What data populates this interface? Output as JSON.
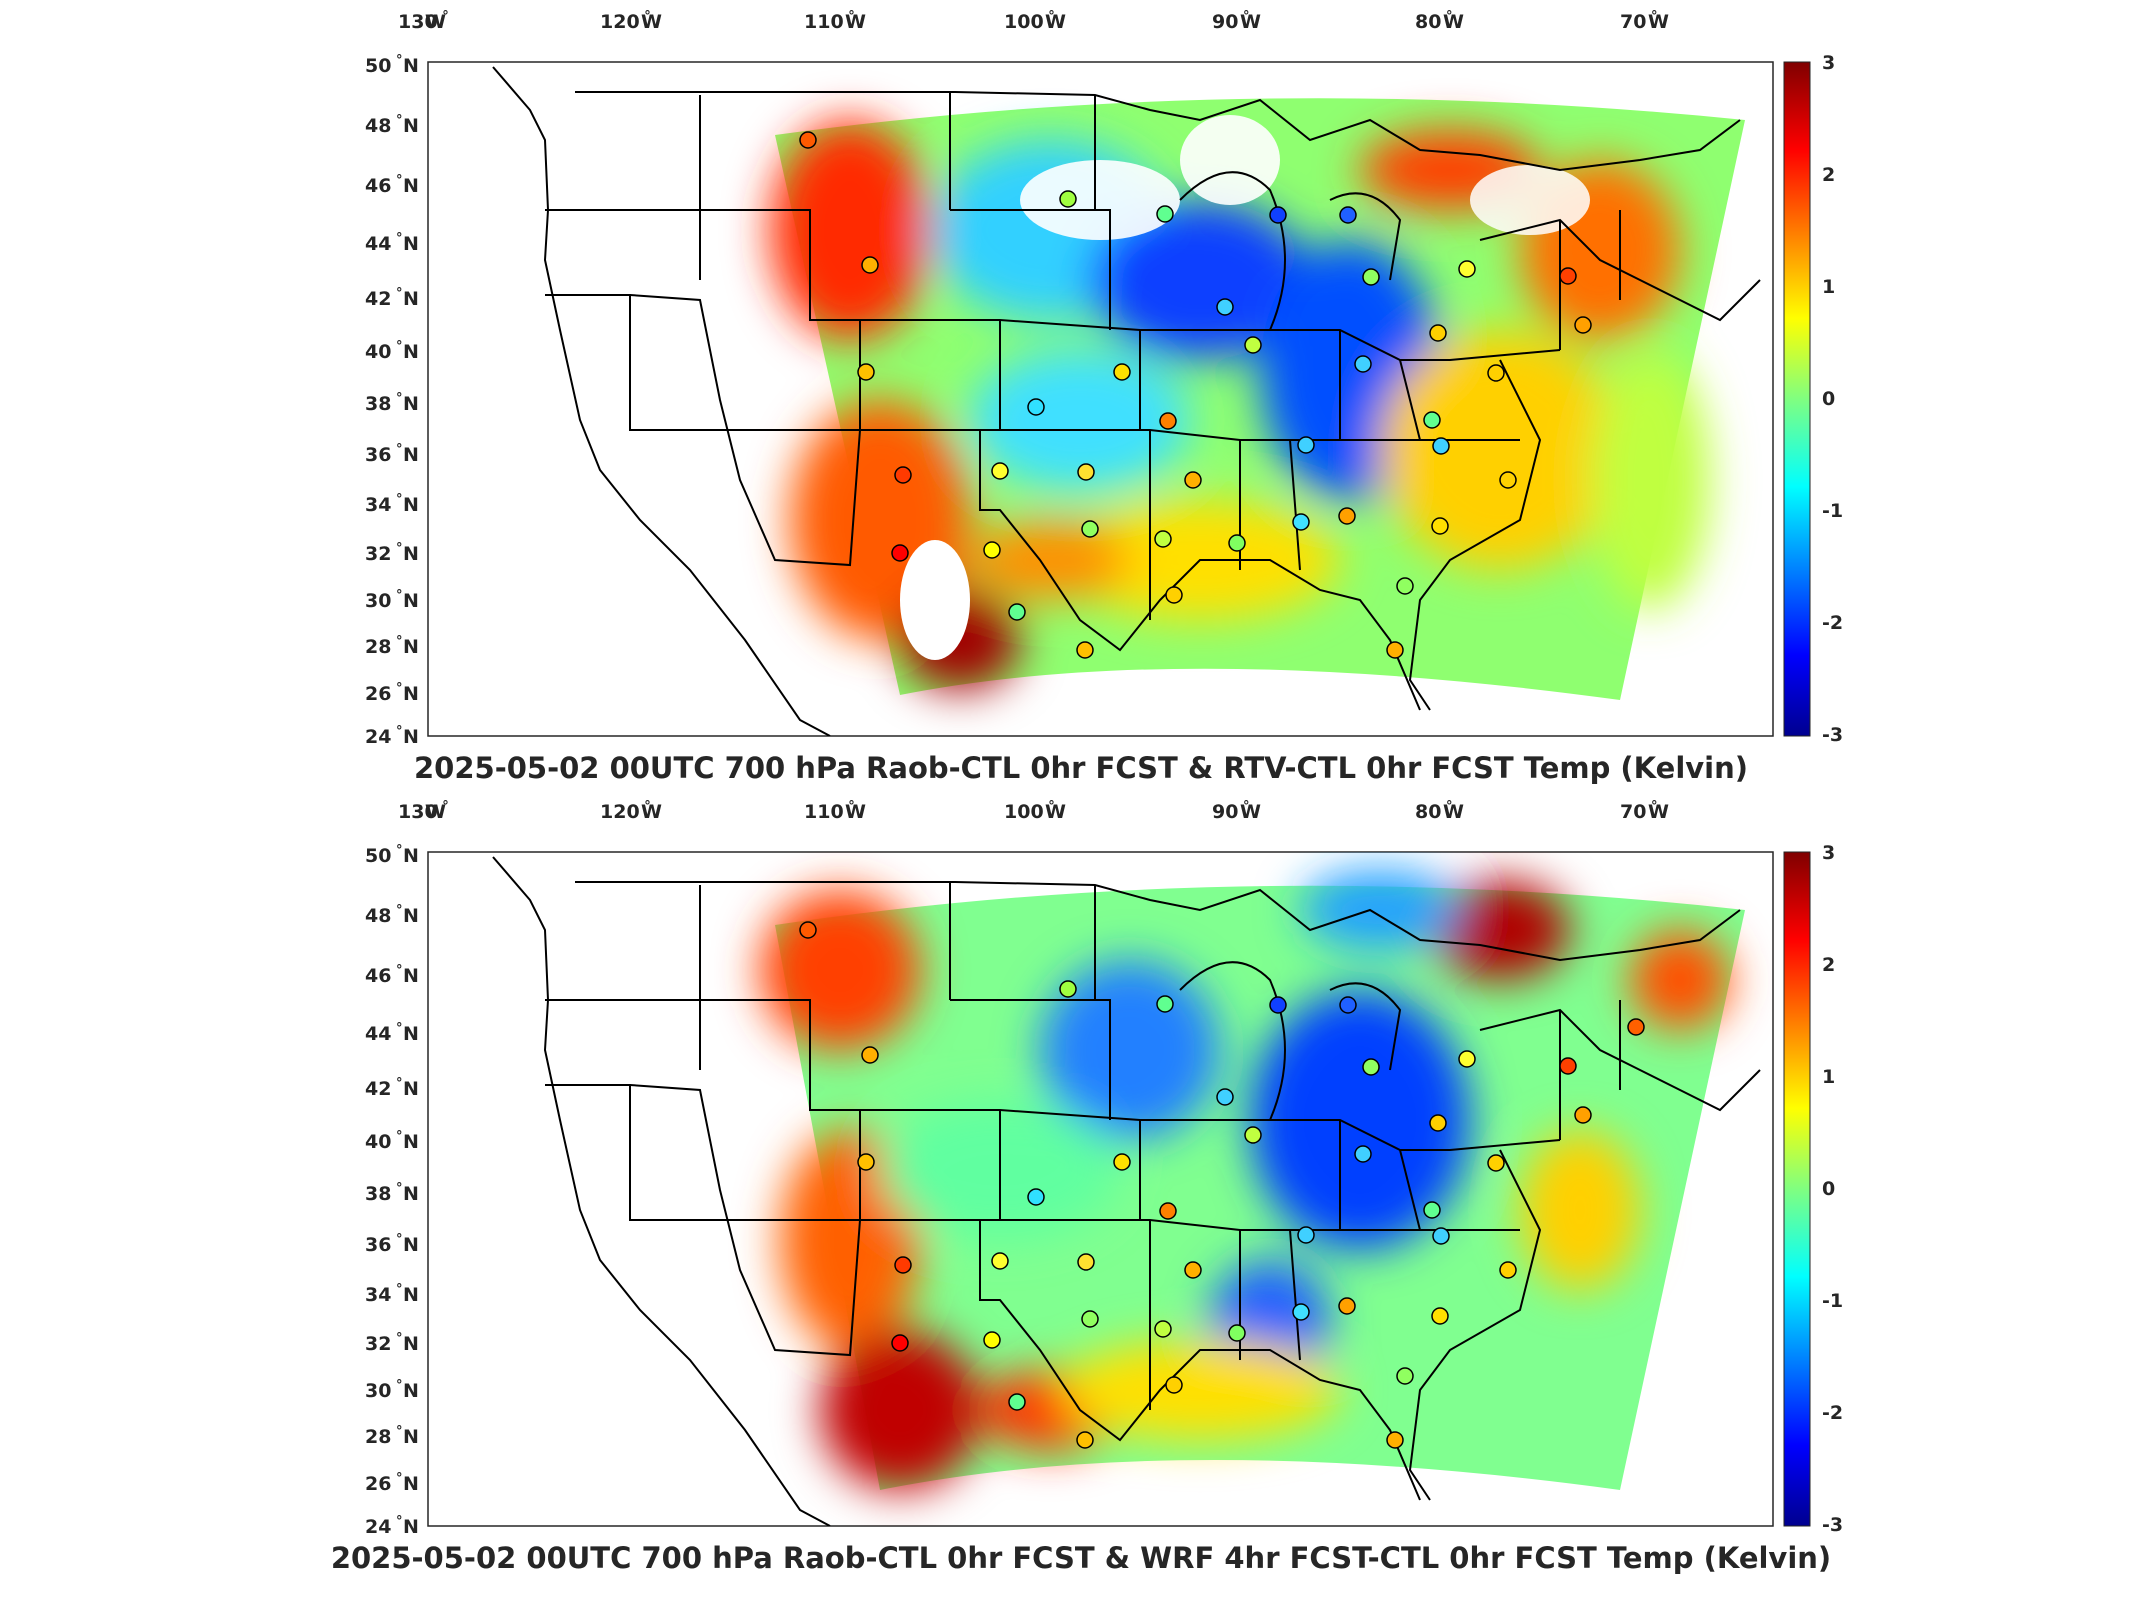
{
  "panels": [
    {
      "title": "2025-05-02 00UTC 700 hPa Raob-CTL 0hr FCST & RTV-CTL 0hr FCST Temp (Kelvin)"
    },
    {
      "title": "2025-05-02 00UTC 700 hPa Raob-CTL 0hr FCST & WRF 4hr FCST-CTL 0hr FCST Temp (Kelvin)"
    }
  ],
  "longitude_labels": [
    "130",
    "120",
    "110",
    "100",
    "90",
    "80",
    "70"
  ],
  "longitude_hemisphere": "W",
  "latitude_labels": [
    "50",
    "48",
    "46",
    "44",
    "42",
    "40",
    "38",
    "36",
    "34",
    "32",
    "30",
    "28",
    "26",
    "24"
  ],
  "latitude_hemisphere": "N",
  "degree_symbol": "°",
  "colorbar": {
    "ticks": [
      "3",
      "2",
      "1",
      "0",
      "-1",
      "-2",
      "-3"
    ],
    "range": [
      -3,
      3
    ],
    "colormap": "jet",
    "colors": [
      "#00008f",
      "#0000ff",
      "#0080ff",
      "#00ffff",
      "#80ff80",
      "#ffff00",
      "#ff8000",
      "#ff0000",
      "#800000"
    ]
  },
  "map": {
    "extent_lon": [
      -131,
      -63
    ],
    "extent_lat": [
      24,
      50
    ],
    "boundaries_color": "#000000",
    "background": "#ffffff"
  }
}
